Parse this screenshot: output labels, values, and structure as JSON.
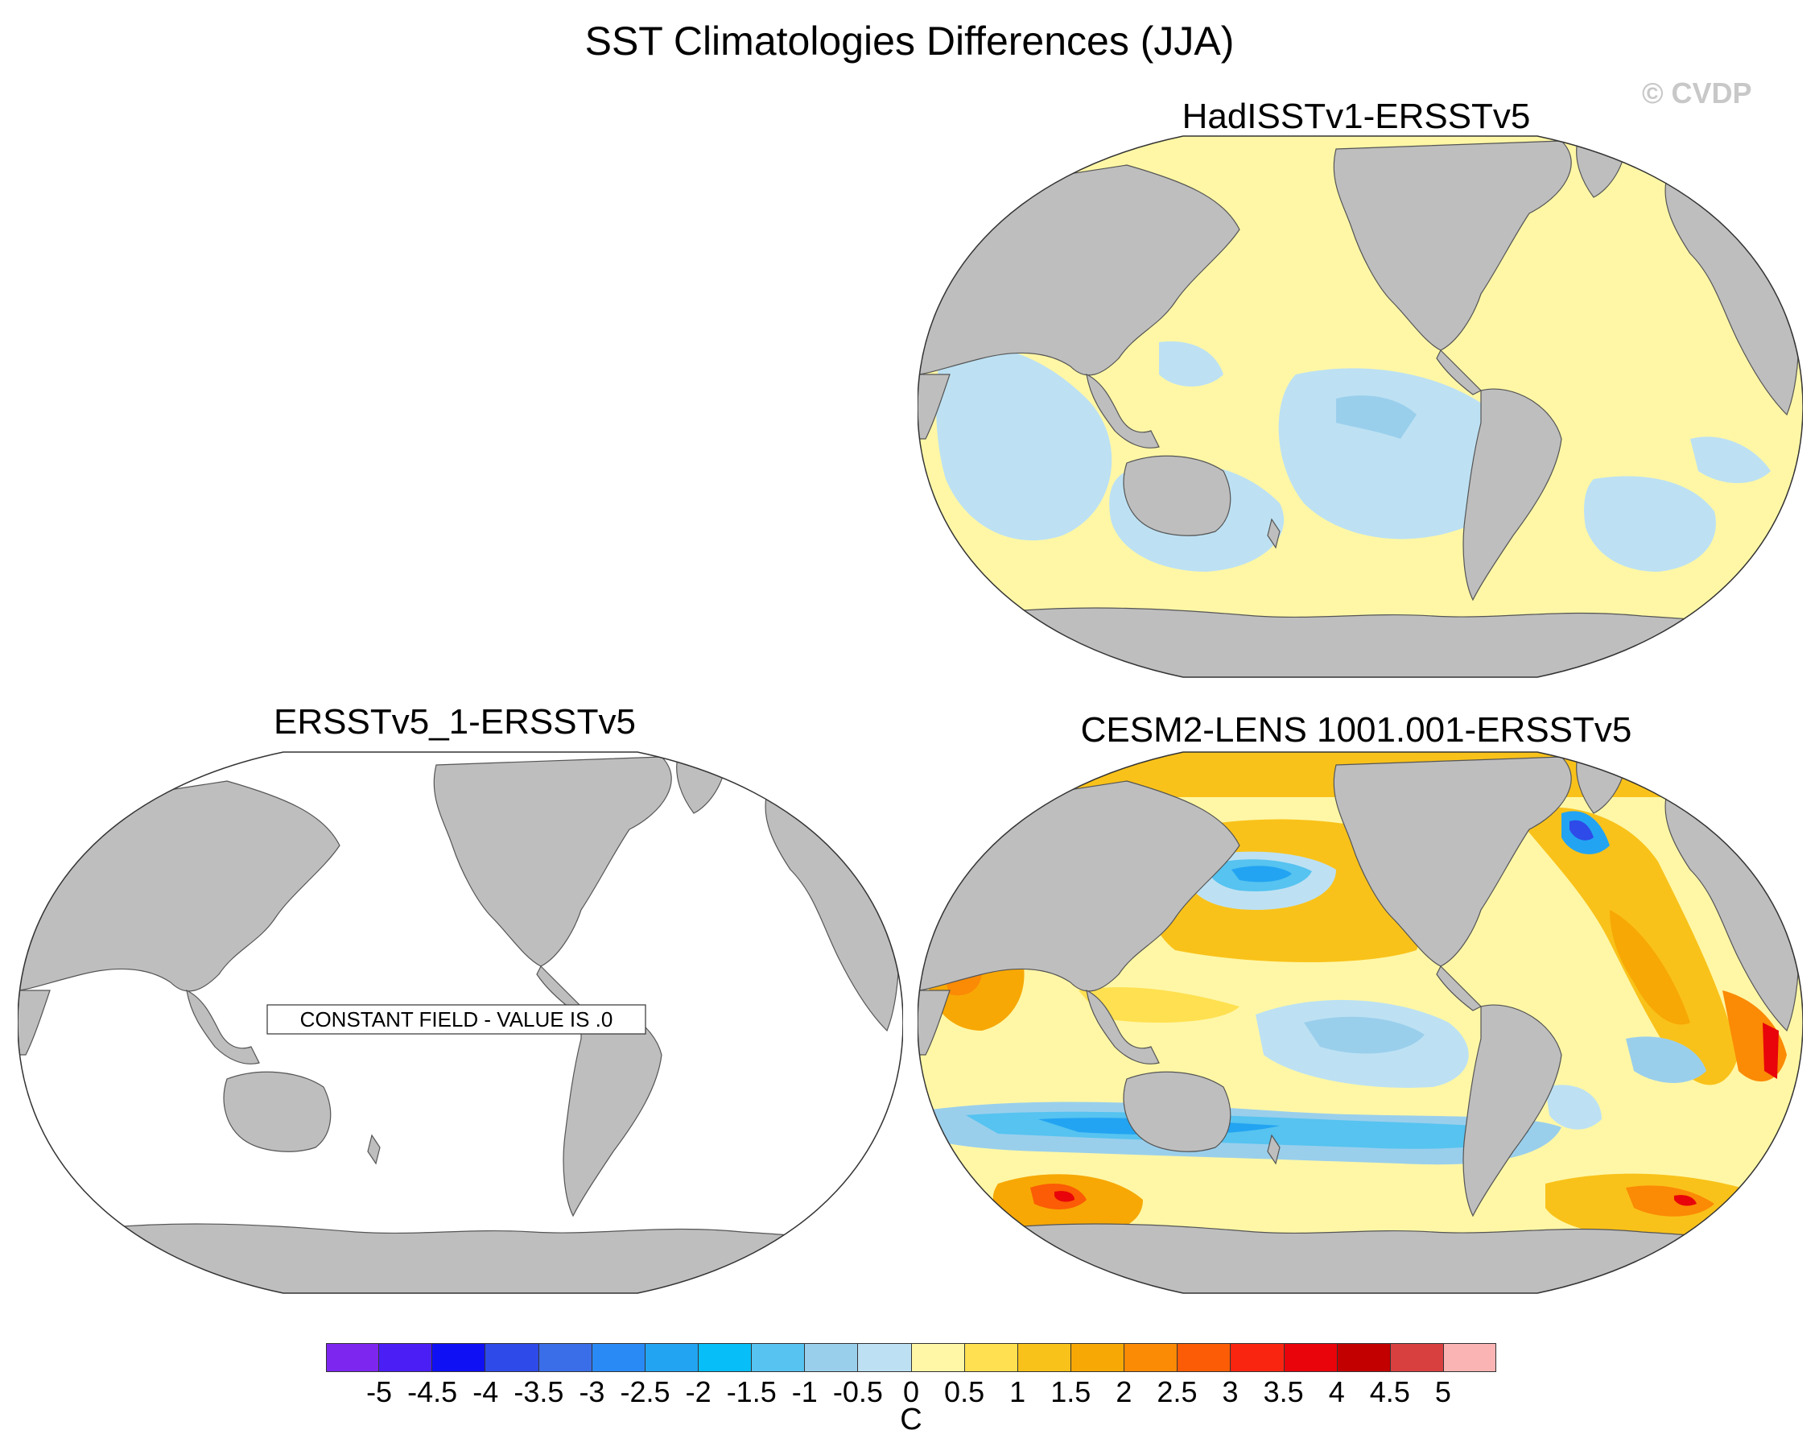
{
  "title": "SST Climatologies Differences (JJA)",
  "copyright": "© CVDP",
  "panels": {
    "top_right": {
      "title": "HadISSTv1-ERSSTv5"
    },
    "bottom_left": {
      "title": "ERSSTv5_1-ERSSTv5",
      "annotation": "CONSTANT FIELD - VALUE IS .0"
    },
    "bottom_right": {
      "title": "CESM2-LENS 1001.001-ERSSTv5"
    }
  },
  "colorbar": {
    "unit": "C",
    "ticks": [
      "-5",
      "-4.5",
      "-4",
      "-3.5",
      "-3",
      "-2.5",
      "-2",
      "-1.5",
      "-1",
      "-0.5",
      "0",
      "0.5",
      "1",
      "1.5",
      "2",
      "2.5",
      "3",
      "3.5",
      "4",
      "4.5",
      "5"
    ],
    "colors": [
      "#7d26f0",
      "#4a1ef5",
      "#1010f5",
      "#2e4ae8",
      "#3a6ee8",
      "#2a8af5",
      "#22a4f2",
      "#07bef8",
      "#56c3f0",
      "#9acfec",
      "#bde1f3",
      "#fff7a6",
      "#ffe050",
      "#f9c21a",
      "#f7a805",
      "#fb8a05",
      "#fb5c05",
      "#fa2510",
      "#e8040a",
      "#c20000",
      "#d84040",
      "#fab4b4"
    ]
  },
  "colors": {
    "land": "#bebebe",
    "coast": "#555555",
    "neutral_ocean": "#ffffff"
  }
}
